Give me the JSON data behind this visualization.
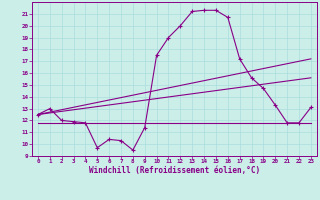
{
  "xlabel": "Windchill (Refroidissement éolien,°C)",
  "bg_color": "#cceee8",
  "grid_color": "#aadddd",
  "line_color": "#880088",
  "xlim": [
    -0.5,
    23.5
  ],
  "ylim": [
    9,
    22
  ],
  "yticks": [
    9,
    10,
    11,
    12,
    13,
    14,
    15,
    16,
    17,
    18,
    19,
    20,
    21
  ],
  "xticks": [
    0,
    1,
    2,
    3,
    4,
    5,
    6,
    7,
    8,
    9,
    10,
    11,
    12,
    13,
    14,
    15,
    16,
    17,
    18,
    19,
    20,
    21,
    22,
    23
  ],
  "main_x": [
    0,
    1,
    2,
    3,
    4,
    5,
    6,
    7,
    8,
    9,
    10,
    11,
    12,
    13,
    14,
    15,
    16,
    17,
    18,
    19,
    20,
    21,
    22,
    23
  ],
  "main_y": [
    12.5,
    13.0,
    12.0,
    11.9,
    11.8,
    9.7,
    10.4,
    10.3,
    9.5,
    11.4,
    17.5,
    19.0,
    20.0,
    21.2,
    21.3,
    21.3,
    20.7,
    17.2,
    15.6,
    14.7,
    13.3,
    11.8,
    11.8,
    13.1
  ],
  "line1_x": [
    0,
    23
  ],
  "line1_y": [
    12.5,
    17.2
  ],
  "line2_x": [
    0,
    23
  ],
  "line2_y": [
    12.5,
    15.6
  ],
  "line3_x": [
    0,
    23
  ],
  "line3_y": [
    11.8,
    11.8
  ],
  "xlabel_fontsize": 5.5,
  "tick_fontsize": 4.2
}
